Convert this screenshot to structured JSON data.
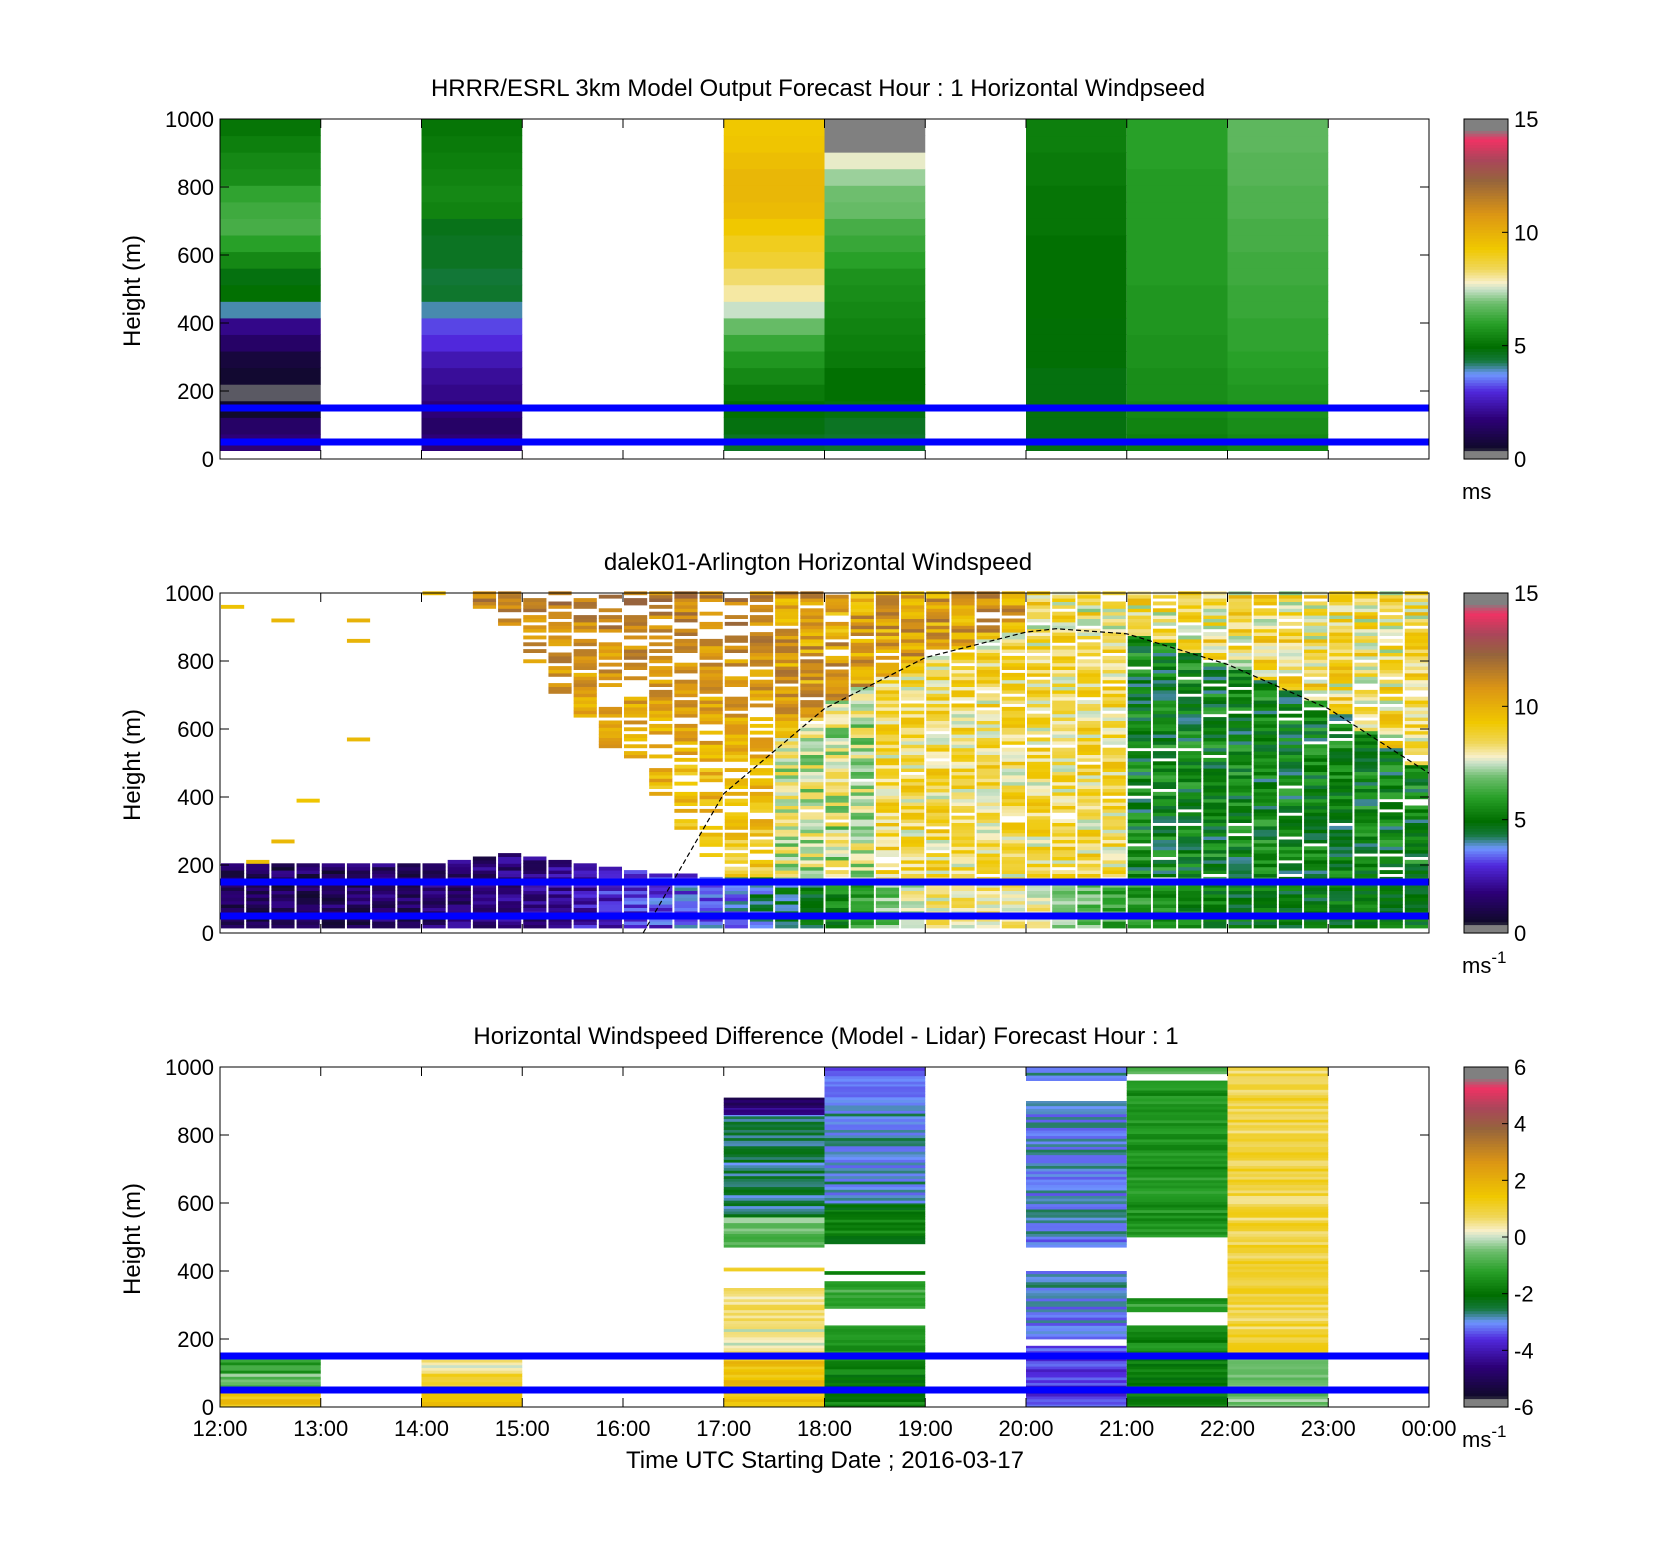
{
  "figure": {
    "xlabel": "Time UTC  Starting Date ; 2016-03-17",
    "xticks": [
      "12:00",
      "13:00",
      "14:00",
      "15:00",
      "16:00",
      "17:00",
      "18:00",
      "19:00",
      "20:00",
      "21:00",
      "22:00",
      "23:00",
      "00:00"
    ]
  },
  "chart_data": [
    {
      "type": "heatmap",
      "title": "HRRR/ESRL 3km Model Output   Forecast Hour : 1 Horizontal Windpseed",
      "ylabel": "Height (m)",
      "ylim": [
        0,
        1000
      ],
      "yticks": [
        0,
        200,
        400,
        600,
        800,
        1000
      ],
      "xlim_hours": [
        12,
        24
      ],
      "colorbar": {
        "min": 0,
        "max": 15,
        "ticks": [
          0,
          5,
          10,
          15
        ],
        "unit": "ms"
      },
      "reference_lines_m": [
        50,
        150
      ],
      "columns": [
        {
          "start": "12:00",
          "end": "13:00",
          "values": [
            1.8,
            1.5,
            0.5,
            0.4,
            0.6,
            0.8,
            1.5,
            2.0,
            4.0,
            5.0,
            4.8,
            5.5,
            6.0,
            6.4,
            6.3,
            6.1,
            5.6,
            5.5,
            5.3,
            5.1
          ]
        },
        {
          "start": "14:00",
          "end": "15:00",
          "values": [
            1.8,
            1.5,
            1.8,
            2.0,
            2.2,
            2.5,
            3.0,
            3.2,
            4.0,
            4.5,
            4.4,
            4.6,
            4.6,
            4.7,
            5.4,
            5.5,
            5.4,
            5.3,
            5.2,
            5.1
          ]
        },
        {
          "start": "17:00",
          "end": "18:00",
          "values": [
            4.6,
            4.8,
            5.0,
            5.2,
            5.5,
            5.8,
            6.2,
            6.8,
            7.5,
            8.0,
            8.3,
            8.8,
            9.0,
            9.3,
            9.7,
            9.8,
            9.8,
            9.6,
            9.4,
            9.3
          ]
        },
        {
          "start": "18:00",
          "end": "19:00",
          "values": [
            4.5,
            4.6,
            4.8,
            5.0,
            5.0,
            5.2,
            5.3,
            5.4,
            5.5,
            5.6,
            5.7,
            6.0,
            6.2,
            6.4,
            6.8,
            6.9,
            7.2,
            7.7,
            14.7,
            14.7
          ]
        },
        {
          "start": "20:00",
          "end": "21:00",
          "values": [
            4.8,
            4.8,
            4.8,
            4.8,
            4.8,
            4.9,
            4.9,
            4.9,
            5.0,
            5.0,
            5.0,
            5.0,
            5.0,
            5.1,
            5.1,
            5.1,
            5.2,
            5.2,
            5.3,
            5.3
          ]
        },
        {
          "start": "21:00",
          "end": "22:00",
          "values": [
            5.3,
            5.4,
            5.5,
            5.6,
            5.6,
            5.7,
            5.7,
            5.8,
            5.8,
            5.8,
            5.9,
            5.9,
            5.9,
            5.9,
            5.9,
            5.9,
            5.9,
            6.0,
            6.0,
            6.0
          ]
        },
        {
          "start": "22:00",
          "end": "23:00",
          "values": [
            5.5,
            5.6,
            5.7,
            5.8,
            5.9,
            6.0,
            6.1,
            6.1,
            6.2,
            6.2,
            6.3,
            6.3,
            6.4,
            6.4,
            6.5,
            6.5,
            6.6,
            6.6,
            6.7,
            6.7
          ]
        }
      ]
    },
    {
      "type": "heatmap",
      "title": "dalek01-Arlington  Horizontal Windspeed",
      "ylabel": "Height (m)",
      "ylim": [
        0,
        1000
      ],
      "yticks": [
        0,
        200,
        400,
        600,
        800,
        1000
      ],
      "xlim_hours": [
        12,
        24
      ],
      "colorbar": {
        "min": 0,
        "max": 15,
        "ticks": [
          0,
          5,
          10,
          15
        ],
        "unit": "ms",
        "unit_sup": "-1"
      },
      "reference_lines_m": [
        50,
        150
      ],
      "boundary_curve": {
        "hours": [
          16.2,
          17,
          18,
          19,
          20,
          20.3,
          21,
          22,
          23,
          24
        ],
        "heights_m": [
          0,
          410,
          660,
          810,
          885,
          895,
          880,
          790,
          660,
          470
        ]
      },
      "profiles": [
        {
          "hour": 12.0,
          "base": 1.2,
          "top_m": 200
        },
        {
          "hour": 13.0,
          "base": 1.3,
          "top_m": 200
        },
        {
          "hour": 14.0,
          "base": 1.5,
          "top_m": 200
        },
        {
          "hour": 15.0,
          "base": 1.8,
          "top_m": 230
        },
        {
          "hour": 16.0,
          "base": 2.8,
          "top_m": 180
        },
        {
          "hour": 17.0,
          "base": 3.6,
          "top_m": 160
        },
        {
          "hour": 18.0,
          "base": 5.0,
          "top_m": 150
        },
        {
          "hour": 19.0,
          "base": 8.0,
          "top_m": 150
        },
        {
          "hour": 20.0,
          "base": 8.2,
          "top_m": 150
        },
        {
          "hour": 21.0,
          "base": 6.0,
          "top_m": 150
        },
        {
          "hour": 22.0,
          "base": 5.0,
          "top_m": 150
        },
        {
          "hour": 23.0,
          "base": 5.0,
          "top_m": 150
        }
      ]
    },
    {
      "type": "heatmap",
      "title": "Horizontal Windspeed Difference (Model - Lidar) Forecast Hour : 1",
      "ylabel": "Height (m)",
      "ylim": [
        0,
        1000
      ],
      "yticks": [
        0,
        200,
        400,
        600,
        800,
        1000
      ],
      "xlim_hours": [
        12,
        24
      ],
      "colorbar": {
        "min": -6,
        "max": 6,
        "ticks": [
          -6,
          -4,
          -2,
          0,
          2,
          4,
          6
        ],
        "unit": "ms",
        "unit_sup": "-1"
      },
      "reference_lines_m": [
        50,
        150
      ],
      "columns": [
        {
          "start": "12:00",
          "end": "13:00",
          "ranges": [
            [
              0,
              50,
              1.5
            ],
            [
              50,
              100,
              -0.5
            ],
            [
              100,
              150,
              -1.3
            ]
          ]
        },
        {
          "start": "14:00",
          "end": "15:00",
          "ranges": [
            [
              0,
              50,
              1.6
            ],
            [
              50,
              100,
              1.2
            ],
            [
              100,
              150,
              0.4
            ]
          ]
        },
        {
          "start": "17:00",
          "end": "18:00",
          "ranges": [
            [
              0,
              150,
              1.6
            ],
            [
              150,
              230,
              0.3
            ],
            [
              230,
              350,
              0.6
            ],
            [
              400,
              410,
              0.8
            ],
            [
              470,
              560,
              -0.6
            ],
            [
              560,
              860,
              -2.6
            ],
            [
              860,
              880,
              -4.2
            ],
            [
              880,
              910,
              -5.0
            ]
          ]
        },
        {
          "start": "18:00",
          "end": "19:00",
          "ranges": [
            [
              0,
              150,
              -1.8
            ],
            [
              150,
              240,
              -1.3
            ],
            [
              290,
              370,
              -1.0
            ],
            [
              390,
              400,
              -1.4
            ],
            [
              480,
              580,
              -1.8
            ],
            [
              580,
              600,
              -2.4
            ],
            [
              600,
              950,
              -2.9
            ],
            [
              950,
              1000,
              -3.4
            ]
          ]
        },
        {
          "start": "20:00",
          "end": "21:00",
          "ranges": [
            [
              0,
              150,
              -3.6
            ],
            [
              150,
              180,
              -3.4
            ],
            [
              200,
              400,
              -3.0
            ],
            [
              470,
              900,
              -3.0
            ],
            [
              960,
              1000,
              -3.0
            ]
          ]
        },
        {
          "start": "21:00",
          "end": "22:00",
          "ranges": [
            [
              0,
              150,
              -1.8
            ],
            [
              150,
              240,
              -1.6
            ],
            [
              280,
              320,
              -1.2
            ],
            [
              980,
              1000,
              -1.0
            ],
            [
              500,
              960,
              -1.4
            ]
          ]
        },
        {
          "start": "22:00",
          "end": "23:00",
          "ranges": [
            [
              0,
              150,
              -0.5
            ],
            [
              150,
              1000,
              0.9
            ]
          ]
        }
      ]
    }
  ]
}
